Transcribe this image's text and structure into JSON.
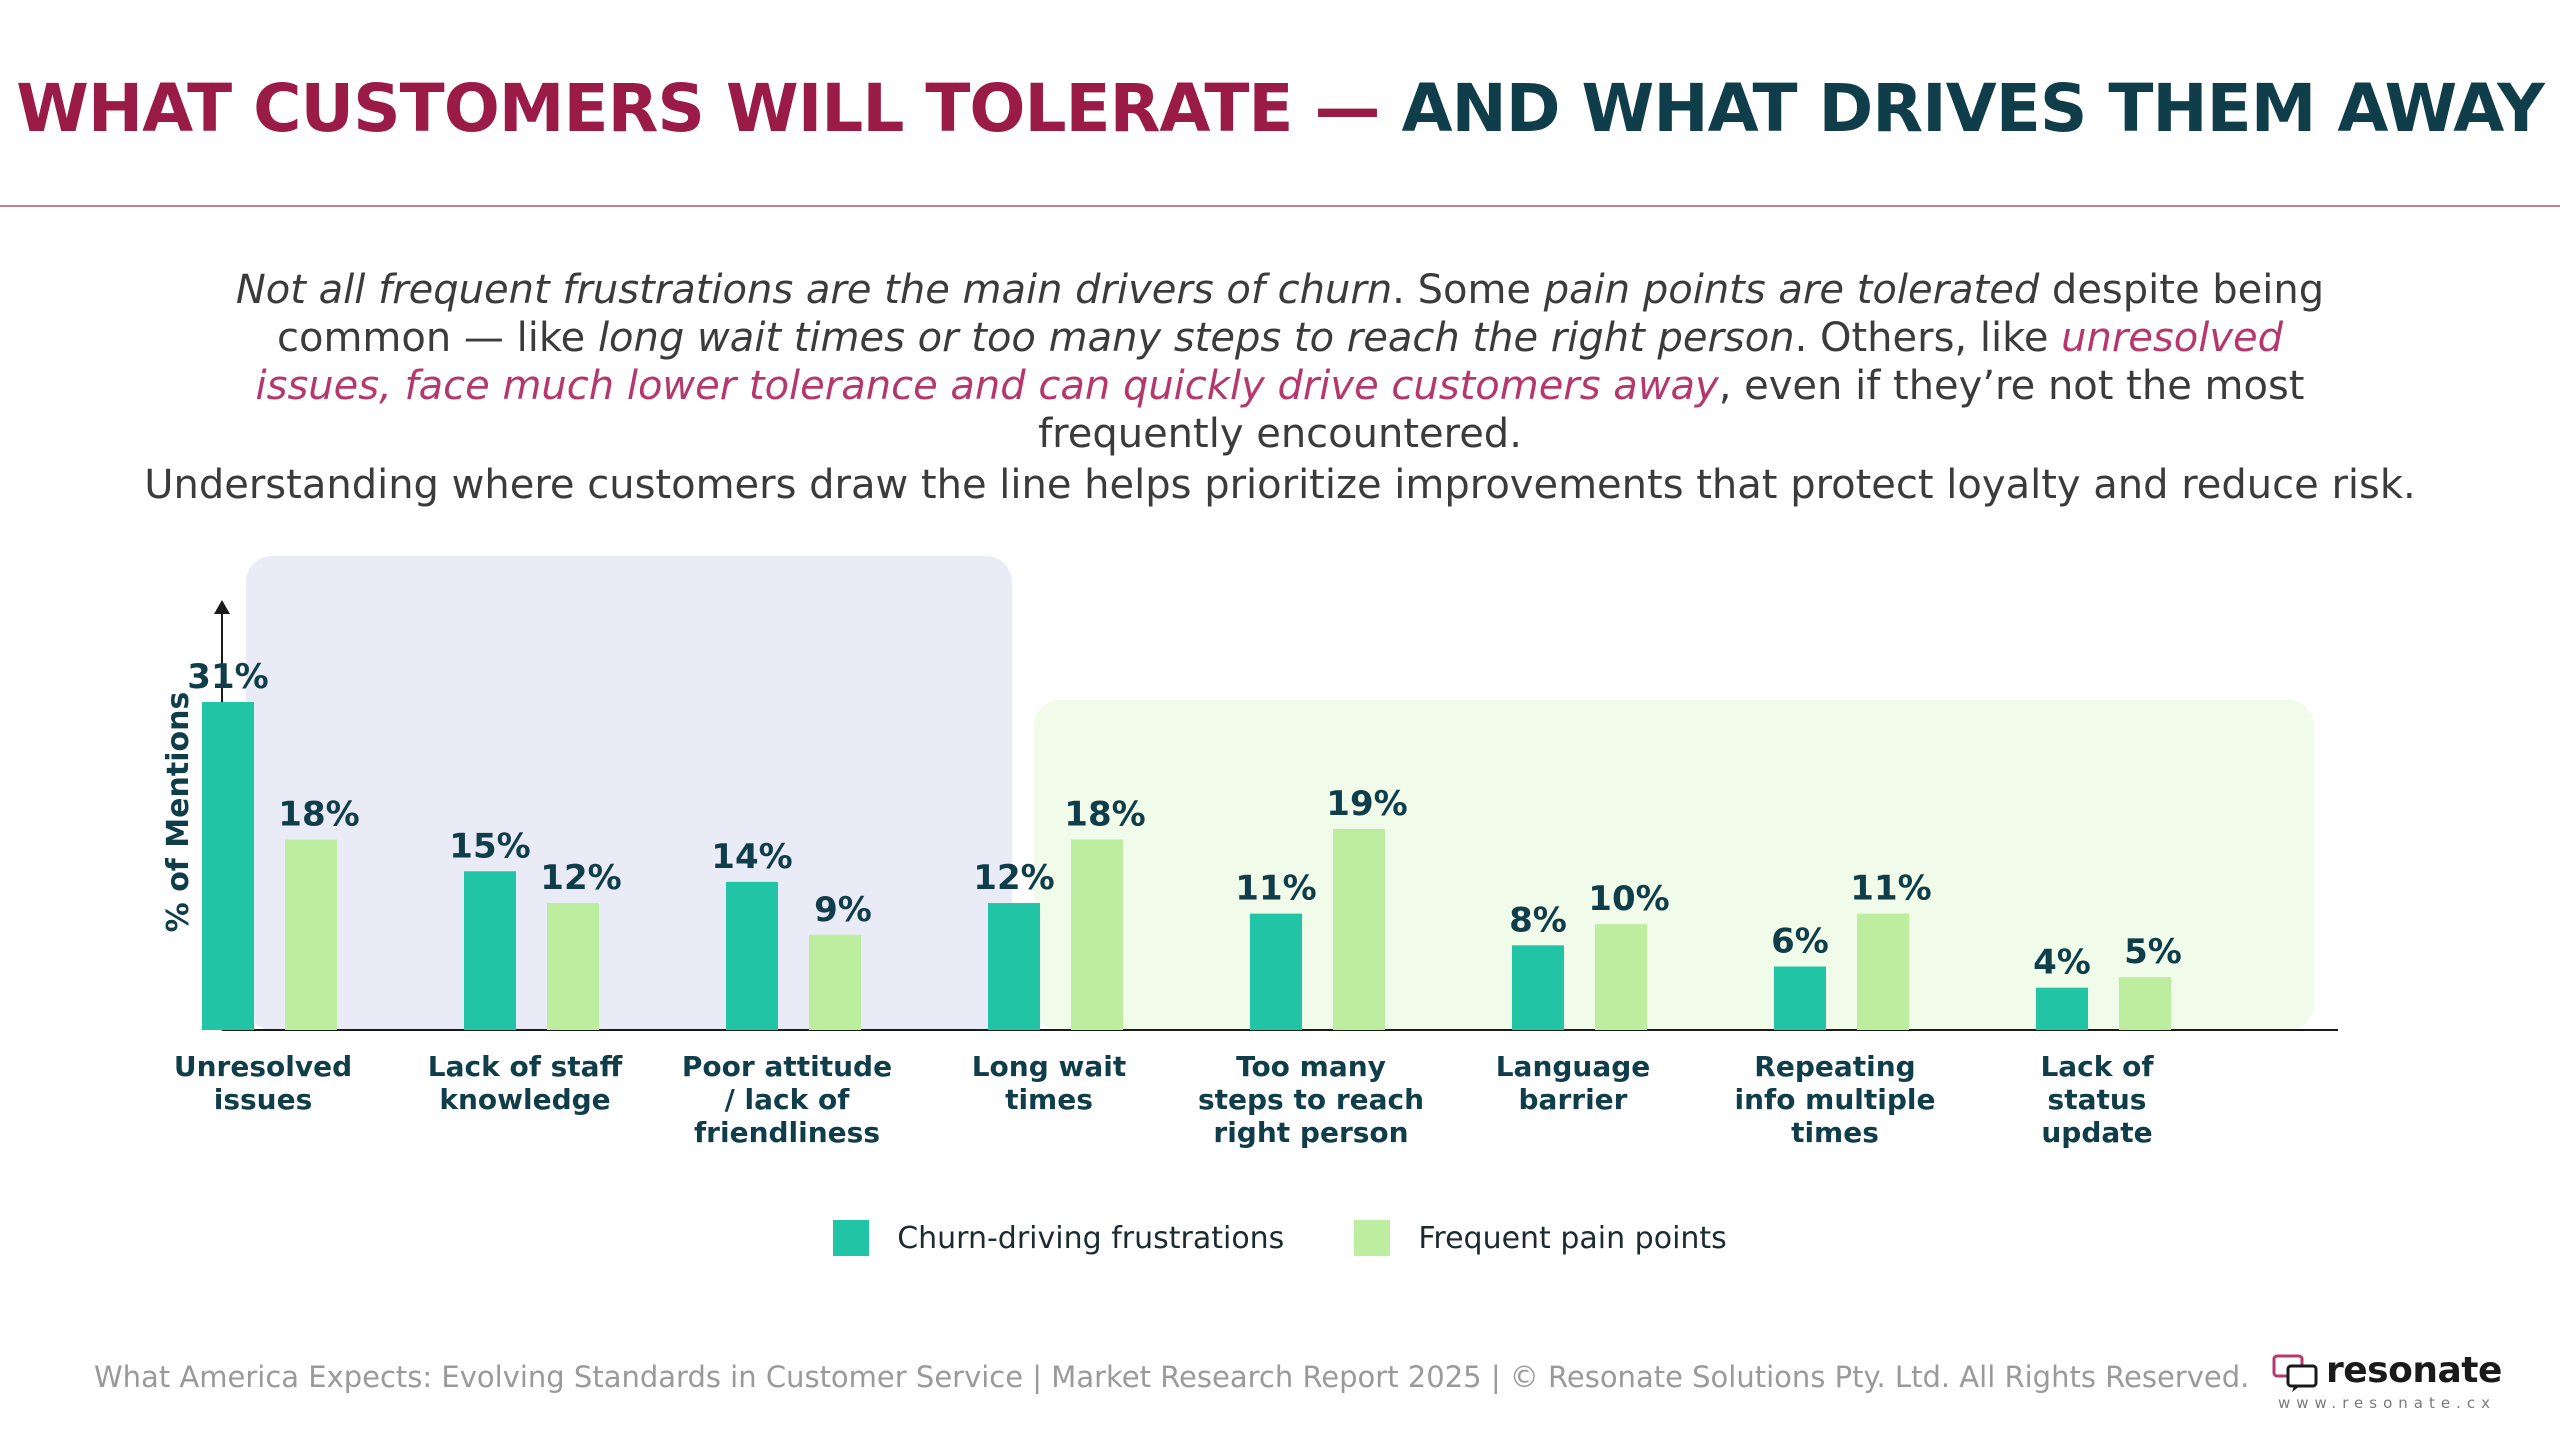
{
  "header": {
    "title_part1": "WHAT CUSTOMERS WILL TOLERATE — ",
    "title_part2": "AND WHAT DRIVES THEM AWAY"
  },
  "intro": {
    "s1": "Not all frequent frustrations are the main drivers of churn",
    "s2": ". Some ",
    "s3": "pain points are tolerated",
    "s4": " despite being common — like ",
    "s5": "long wait times or too many steps to reach the right person",
    "s6": ". Others, like ",
    "s7": "unresolved issues, face much lower tolerance and can quickly drive customers away",
    "s8": ", even if they’re not the most frequently encountered."
  },
  "subtext": "Understanding where customers draw the line helps prioritize improvements that protect loyalty and reduce risk.",
  "colors": {
    "churn": "#21c5a5",
    "pain": "#bdeea0",
    "churn_zone_bg": "#e9ecf7",
    "pain_zone_bg": "#f0fbea",
    "label_dark": "#0f3d4a",
    "title_red": "#9b1b47",
    "accent_pink": "#b5376c"
  },
  "chart_data": {
    "type": "bar",
    "ylabel": "% of Mentions",
    "ylim": [
      0,
      36
    ],
    "categories": [
      [
        "Unresolved",
        "issues"
      ],
      [
        "Lack of staff",
        "knowledge"
      ],
      [
        "Poor attitude",
        "/ lack of",
        "friendliness"
      ],
      [
        "Long wait",
        "times"
      ],
      [
        "Too many",
        "steps to reach",
        "right person"
      ],
      [
        "Language",
        "barrier"
      ],
      [
        "Repeating",
        "info multiple",
        "times"
      ],
      [
        "Lack of",
        "status",
        "update"
      ]
    ],
    "series": [
      {
        "name": "Churn-driving frustrations",
        "values": [
          31,
          15,
          14,
          12,
          11,
          8,
          6,
          4
        ],
        "labels": [
          "31%",
          "15%",
          "14%",
          "12%",
          "11%",
          "8%",
          "6%",
          "4%"
        ]
      },
      {
        "name": "Frequent pain points",
        "values": [
          18,
          12,
          9,
          18,
          19,
          10,
          11,
          5
        ],
        "labels": [
          "18%",
          "12%",
          "9%",
          "18%",
          "19%",
          "10%",
          "11%",
          "5%"
        ]
      }
    ],
    "highlight_groups": [
      "churn-driving: first 3 categories",
      "tolerated: last 5 categories"
    ],
    "legend_position": "bottom",
    "grid": false
  },
  "legend": {
    "churn_label": "Churn-driving frustrations",
    "pain_label": "Frequent pain points"
  },
  "footer": {
    "text": "What America Expects: Evolving Standards in Customer Service | Market Research Report 2025 | © Resonate Solutions Pty. Ltd. All Rights Reserved."
  },
  "logo": {
    "name": "resonate",
    "url": "www.resonate.cx"
  }
}
